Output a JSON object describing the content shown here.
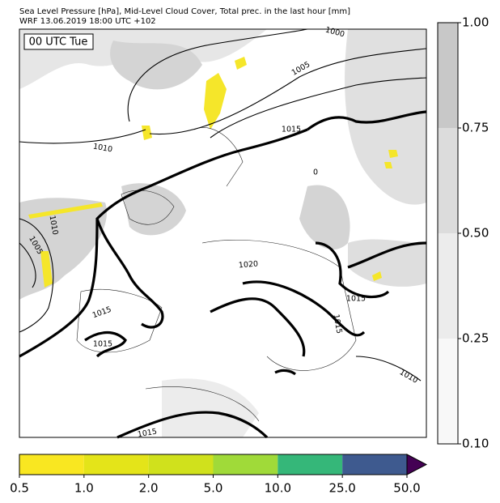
{
  "header": {
    "title": "Sea Level Pressure [hPa], Mid-Level Cloud Cover, Total prec. in the last hour [mm]",
    "subtitle": "WRF 13.06.2019 18:00 UTC +102"
  },
  "map": {
    "stamp": "00 UTC Tue",
    "contour_labels": [
      "1000",
      "1005",
      "1015",
      "1010",
      "0",
      "1010",
      "1005",
      "1020",
      "1015",
      "1015",
      "1015",
      "1015",
      "1010",
      "1015"
    ]
  },
  "cloud_colorbar": {
    "ticks": [
      {
        "value": 1,
        "label": "1.00"
      },
      {
        "value": 0.75,
        "label": "0.75"
      },
      {
        "value": 0.5,
        "label": "0.50"
      },
      {
        "value": 0.25,
        "label": "0.25"
      },
      {
        "value": 0.1,
        "label": "0.10"
      }
    ],
    "colors": [
      "#c8c8c8",
      "#dcdcdc",
      "#ececec",
      "#f8f8f8"
    ]
  },
  "precip_colorbar": {
    "ticks": [
      0.5,
      {
        "value": 1,
        "label": "1.0"
      },
      {
        "value": 2,
        "label": "2.0"
      },
      {
        "value": 5,
        "label": "5.0"
      },
      {
        "value": 10,
        "label": "10.0"
      },
      {
        "value": 25,
        "label": "25.0"
      },
      {
        "value": 50,
        "label": "50.0"
      }
    ],
    "colors": [
      "#f9e721",
      "#e4e419",
      "#d0e11c",
      "#a0da39",
      "#35b779",
      "#3e5a8f"
    ],
    "extend_color": "#440154"
  }
}
